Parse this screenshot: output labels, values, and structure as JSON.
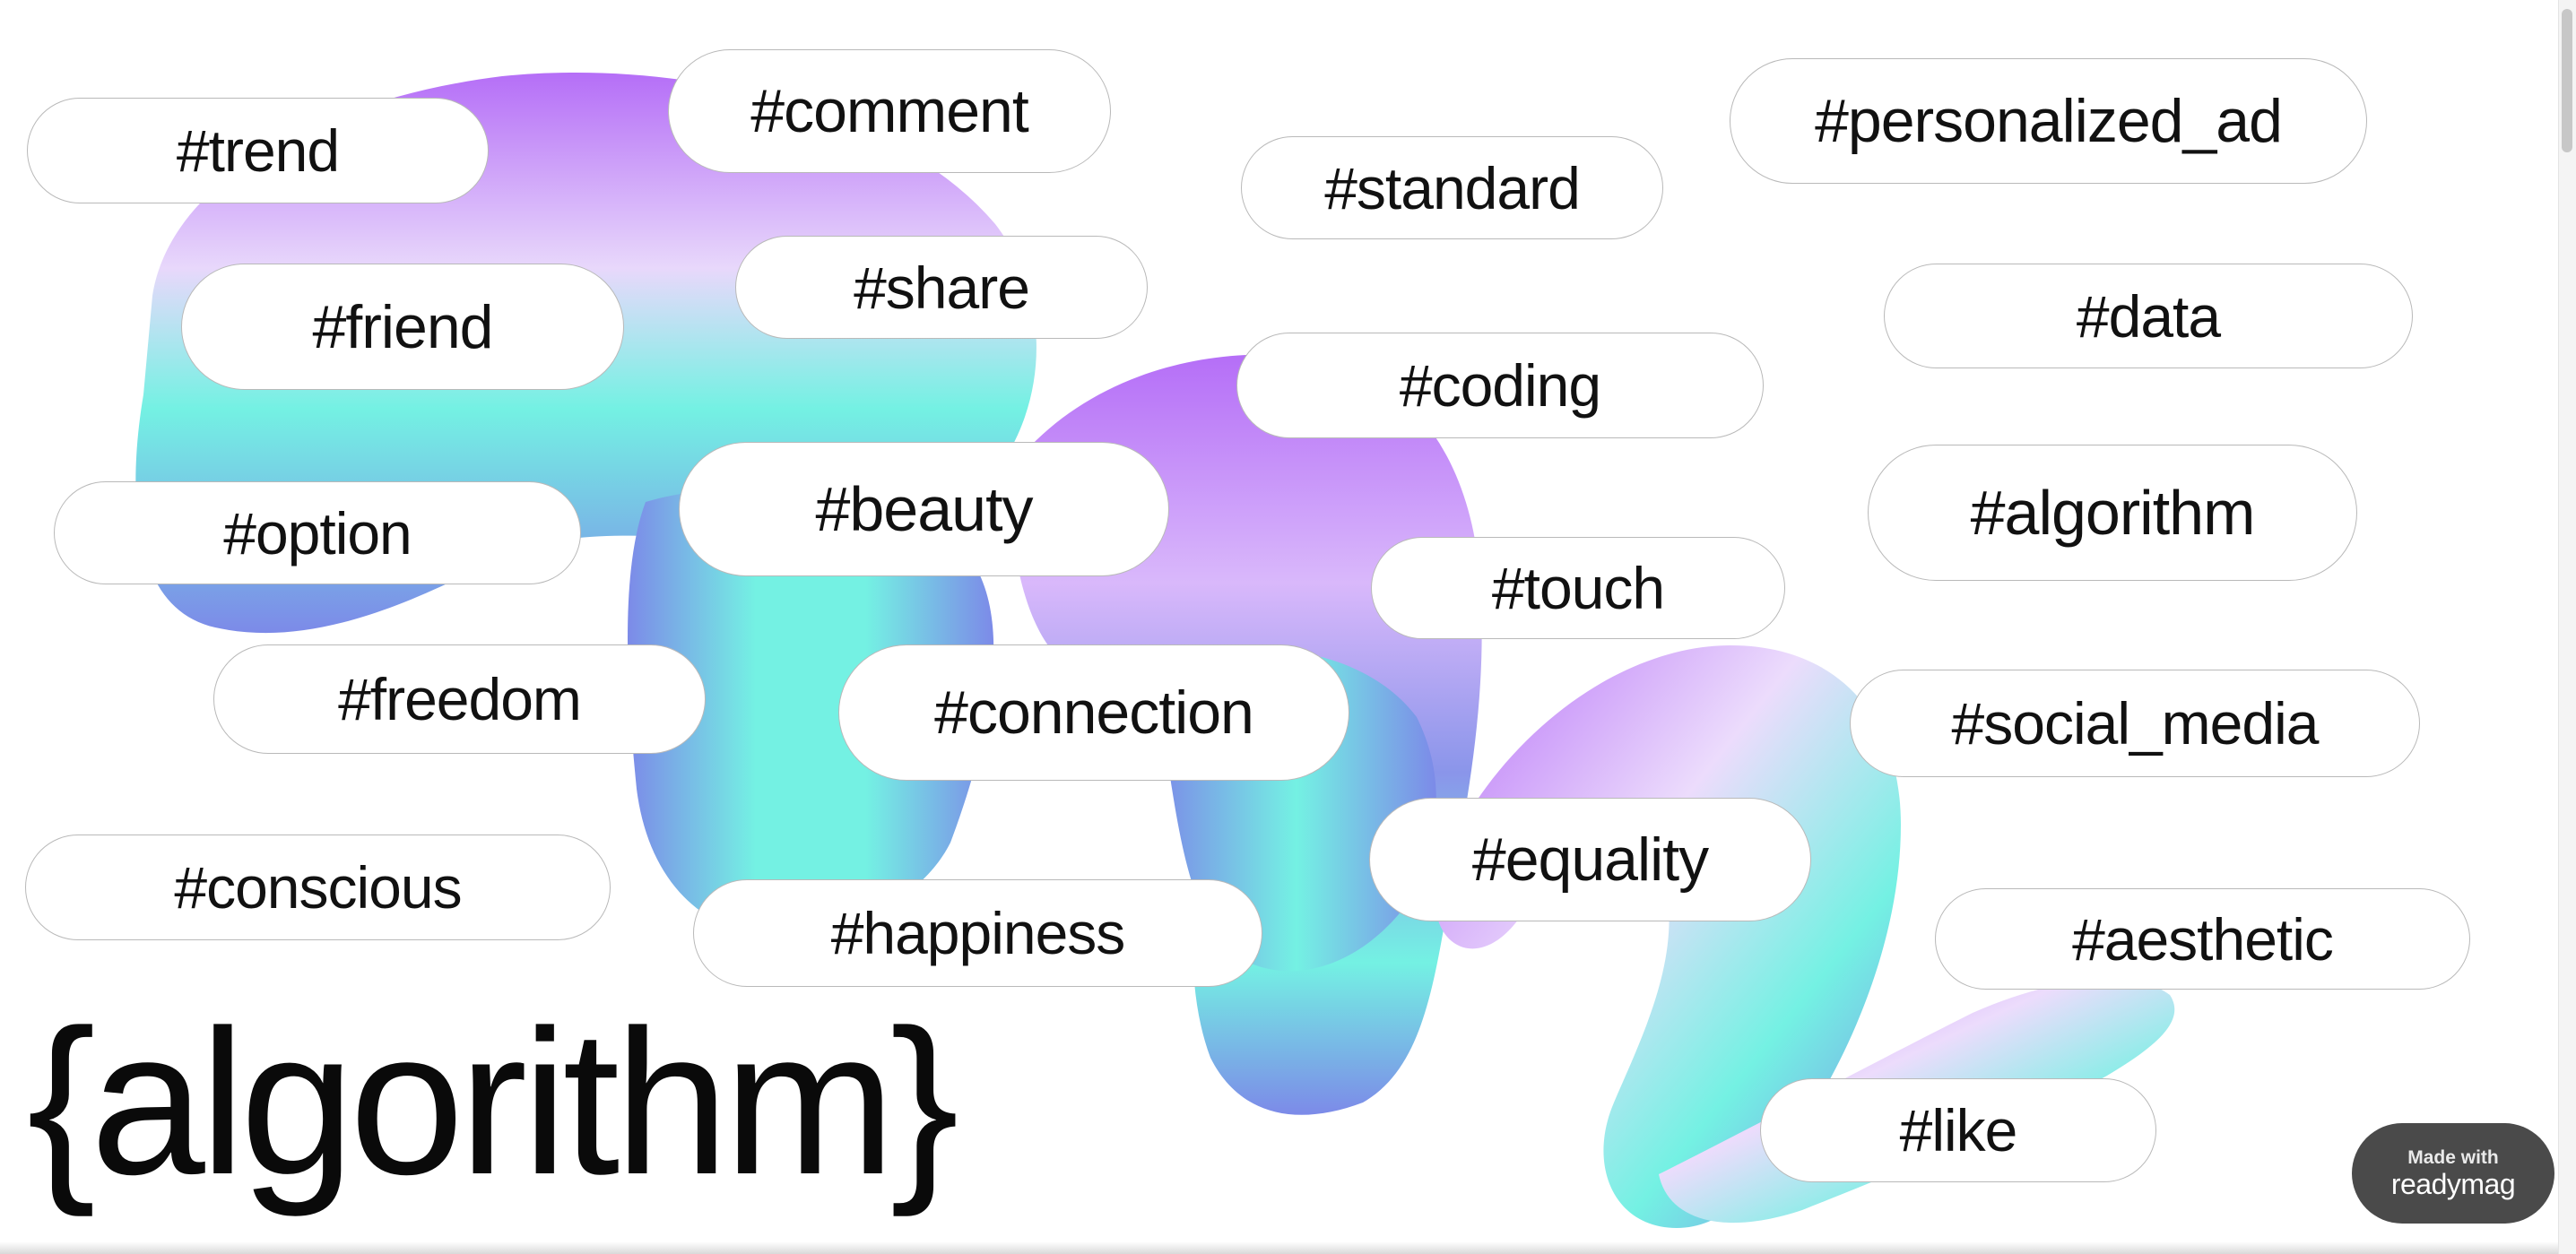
{
  "title": "{algorithm}",
  "badge": {
    "made_with": "Made with",
    "brand": "readymag"
  },
  "colors": {
    "violet": "#b56ef7",
    "lavender": "#e7d6fb",
    "aqua": "#74f1e3",
    "periwinkle": "#7c8ae8",
    "pill_border": "#b9b9b9",
    "badge_bg": "#4a4a4a"
  },
  "tags": [
    "#trend",
    "#comment",
    "#standard",
    "#personalized_ad",
    "#share",
    "#friend",
    "#data",
    "#coding",
    "#option",
    "#beauty",
    "#algorithm",
    "#touch",
    "#freedom",
    "#connection",
    "#social_media",
    "#equality",
    "#conscious",
    "#happiness",
    "#aesthetic",
    "#like"
  ]
}
